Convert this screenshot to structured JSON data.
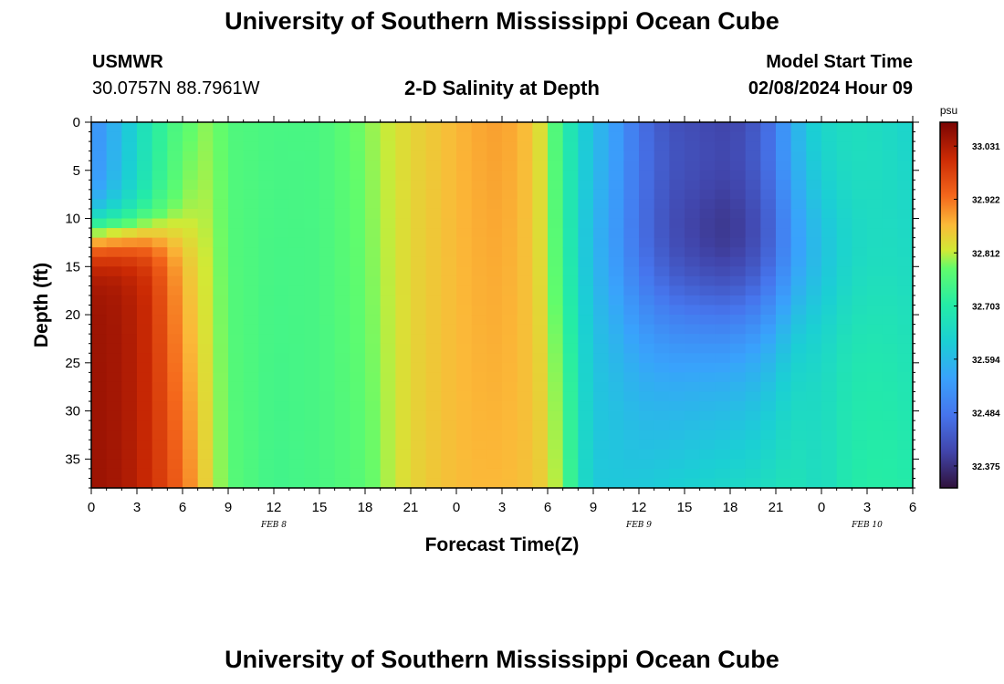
{
  "header": {
    "title_top": "University of Southern Mississippi Ocean Cube",
    "station": "USMWR",
    "coords": "30.0757N  88.7961W",
    "subtitle": "2-D Salinity at Depth",
    "model_start_label": "Model Start Time",
    "model_start_value": "02/08/2024 Hour 09",
    "title_bottom": "University of Southern Mississippi Ocean Cube"
  },
  "chart_data": {
    "type": "heatmap",
    "title": "2-D Salinity at Depth",
    "xlabel": "Forecast Time(Z)",
    "ylabel": "Depth (ft)",
    "x_hours_range": [
      0,
      54
    ],
    "x_ticks": [
      {
        "h": 0,
        "label": "0"
      },
      {
        "h": 3,
        "label": "3"
      },
      {
        "h": 6,
        "label": "6"
      },
      {
        "h": 9,
        "label": "9"
      },
      {
        "h": 12,
        "label": "12"
      },
      {
        "h": 15,
        "label": "15"
      },
      {
        "h": 18,
        "label": "18"
      },
      {
        "h": 21,
        "label": "21"
      },
      {
        "h": 24,
        "label": "0"
      },
      {
        "h": 27,
        "label": "3"
      },
      {
        "h": 30,
        "label": "6"
      },
      {
        "h": 33,
        "label": "9"
      },
      {
        "h": 36,
        "label": "12"
      },
      {
        "h": 39,
        "label": "15"
      },
      {
        "h": 42,
        "label": "18"
      },
      {
        "h": 45,
        "label": "21"
      },
      {
        "h": 48,
        "label": "0"
      },
      {
        "h": 51,
        "label": "3"
      },
      {
        "h": 54,
        "label": "6"
      }
    ],
    "date_labels": [
      {
        "h": 12,
        "label": "FEB 8"
      },
      {
        "h": 36,
        "label": "FEB 9"
      },
      {
        "h": 51,
        "label": "FEB 10"
      }
    ],
    "ylim": [
      0,
      38
    ],
    "y_ticks": [
      0,
      5,
      10,
      15,
      20,
      25,
      30,
      35
    ],
    "colorbar": {
      "unit": "psu",
      "range": [
        32.33,
        33.08
      ],
      "ticks": [
        33.031,
        32.922,
        32.812,
        32.703,
        32.594,
        32.484,
        32.375
      ]
    },
    "time_profile_hours": [
      0,
      2,
      4,
      6,
      8,
      9,
      12,
      15,
      18,
      21,
      23,
      25,
      27,
      29,
      30,
      31,
      32,
      33,
      34,
      36,
      38,
      40,
      42,
      44,
      45,
      46,
      47,
      48,
      50,
      52,
      54
    ],
    "surface_salinity": [
      32.52,
      32.6,
      32.7,
      32.77,
      32.8,
      32.76,
      32.75,
      32.75,
      32.79,
      32.84,
      32.86,
      32.88,
      32.89,
      32.86,
      32.8,
      32.72,
      32.65,
      32.6,
      32.57,
      32.48,
      32.43,
      32.42,
      32.41,
      32.45,
      32.5,
      32.57,
      32.62,
      32.65,
      32.67,
      32.66,
      32.64
    ],
    "bottom_salinity": [
      33.05,
      33.04,
      33.0,
      32.93,
      32.82,
      32.77,
      32.74,
      32.75,
      32.77,
      32.84,
      32.86,
      32.87,
      32.87,
      32.86,
      32.84,
      32.78,
      32.68,
      32.62,
      32.62,
      32.62,
      32.63,
      32.64,
      32.65,
      32.66,
      32.67,
      32.68,
      32.67,
      32.66,
      32.7,
      32.71,
      32.7
    ]
  }
}
